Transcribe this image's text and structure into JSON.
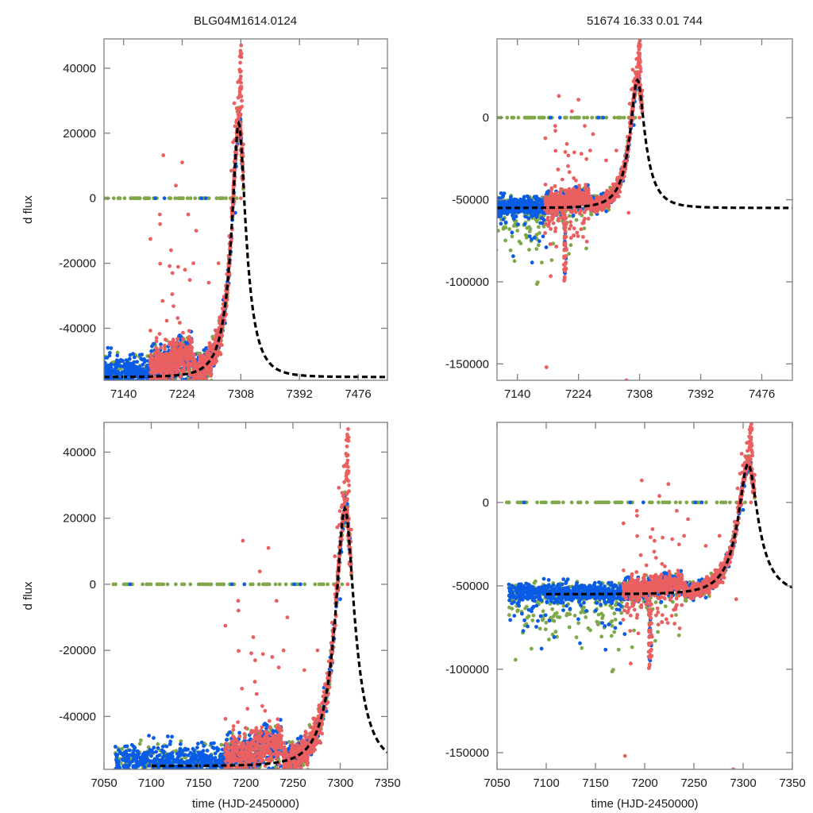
{
  "figure": {
    "title_left": "BLG04M1614.0124",
    "title_right": "51674  16.33  0.01  744"
  },
  "colors": {
    "series_green": "#7fa84a",
    "series_blue": "#0a5ce6",
    "series_red": "#ea6060",
    "model": "#000000",
    "axes": "#7f7f7f"
  },
  "chart_data": [
    {
      "id": "top-left",
      "type": "scatter",
      "title": "BLG04M1614.0124",
      "xlabel": "",
      "ylabel": "d flux",
      "xlim": [
        7112,
        7518
      ],
      "ylim": [
        -56000,
        49000
      ],
      "xticks": [
        7140,
        7224,
        7308,
        7392,
        7476
      ],
      "yticks": [
        -40000,
        -20000,
        0,
        20000,
        40000
      ],
      "grid": false,
      "legend": "none"
    },
    {
      "id": "top-right",
      "type": "scatter",
      "title": "51674  16.33  0.01  744",
      "xlabel": "",
      "ylabel": "",
      "xlim": [
        7112,
        7518
      ],
      "ylim": [
        -160000,
        48000
      ],
      "xticks": [
        7140,
        7224,
        7308,
        7392,
        7476
      ],
      "yticks": [
        -150000,
        -100000,
        -50000,
        0
      ],
      "grid": false,
      "legend": "none"
    },
    {
      "id": "bottom-left",
      "type": "scatter",
      "title": "",
      "xlabel": "time (HJD-2450000)",
      "ylabel": "d flux",
      "xlim": [
        7050,
        7350
      ],
      "ylim": [
        -56000,
        49000
      ],
      "xticks": [
        7050,
        7100,
        7150,
        7200,
        7250,
        7300,
        7350
      ],
      "yticks": [
        -40000,
        -20000,
        0,
        20000,
        40000
      ],
      "grid": false,
      "legend": "none"
    },
    {
      "id": "bottom-right",
      "type": "scatter",
      "title": "",
      "xlabel": "time (HJD-2450000)",
      "ylabel": "",
      "xlim": [
        7050,
        7350
      ],
      "ylim": [
        -160000,
        48000
      ],
      "xticks": [
        7050,
        7100,
        7150,
        7200,
        7250,
        7300,
        7350
      ],
      "yticks": [
        -150000,
        -100000,
        -50000,
        0
      ],
      "grid": false,
      "legend": "none"
    }
  ],
  "series_model": {
    "name": "microlensing model (dashed)",
    "description": "baseline ~-55000 rising to peak ~23000 near t=7305, then decaying back to baseline",
    "baseline": -55000,
    "peak_time": 7305,
    "peak_value": 23000,
    "rise_start": 7230
  },
  "series_points": [
    {
      "name": "green",
      "note": "baseline scatter 7060-7250 and zero-flux row at 0 from 7060 to 7305"
    },
    {
      "name": "blue",
      "note": "baseline dense scatter 7060-7240, rising branch 7260-7305"
    },
    {
      "name": "red",
      "note": "dense from 7180 onward, peak up to ~47000 at ~7307"
    }
  ]
}
